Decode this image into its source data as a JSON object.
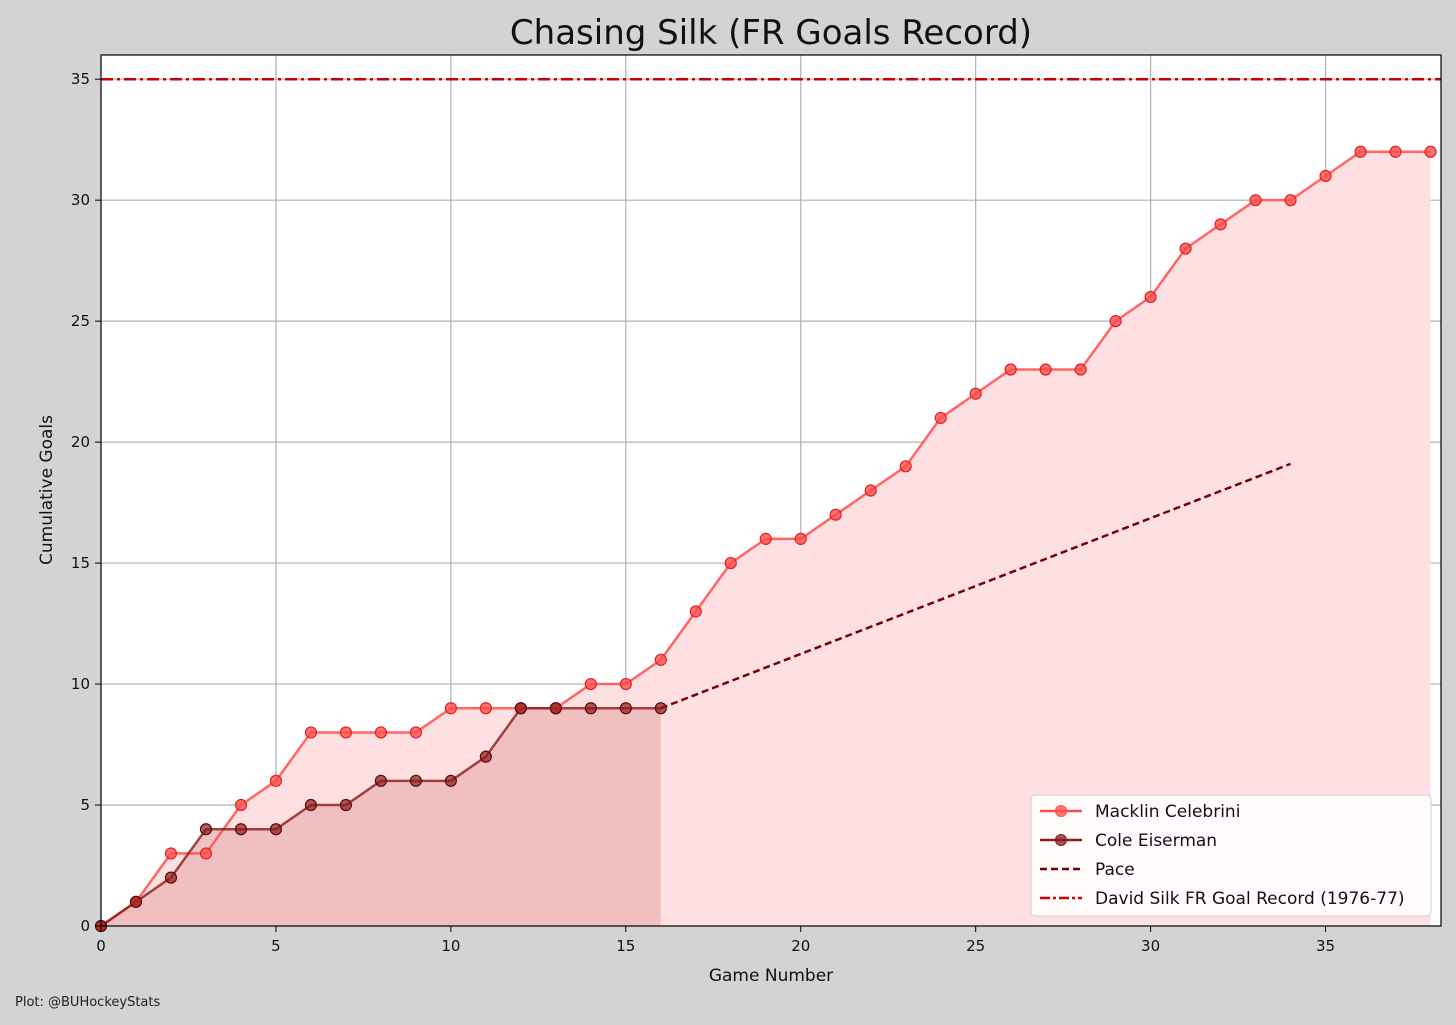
{
  "chart_data": {
    "type": "line",
    "title": "Chasing Silk (FR Goals Record)",
    "xlabel": "Game Number",
    "ylabel": "Cumulative Goals",
    "xlim": [
      0,
      38.3
    ],
    "ylim": [
      0,
      36
    ],
    "xticks": [
      0,
      5,
      10,
      15,
      20,
      25,
      30,
      35
    ],
    "yticks": [
      0,
      5,
      10,
      15,
      20,
      25,
      30,
      35
    ],
    "grid": true,
    "legend_position": "bottom-right",
    "series": [
      {
        "name": "Macklin Celebrini",
        "style": "line-marker",
        "color": "#ff4d4d",
        "fill": "#ffe0e2",
        "x": [
          0,
          1,
          2,
          3,
          4,
          5,
          6,
          7,
          8,
          9,
          10,
          11,
          12,
          13,
          14,
          15,
          16,
          17,
          18,
          19,
          20,
          21,
          22,
          23,
          24,
          25,
          26,
          27,
          28,
          29,
          30,
          31,
          32,
          33,
          34,
          35,
          36,
          37,
          38
        ],
        "y": [
          0,
          1,
          3,
          3,
          5,
          6,
          8,
          8,
          8,
          8,
          9,
          9,
          9,
          9,
          10,
          10,
          11,
          13,
          15,
          16,
          16,
          17,
          18,
          19,
          21,
          22,
          23,
          23,
          23,
          25,
          26,
          28,
          29,
          30,
          30,
          31,
          32,
          32,
          32
        ]
      },
      {
        "name": "Cole Eiserman",
        "style": "line-marker",
        "color": "#8b1a1a",
        "fill": "#eebcbc",
        "x": [
          0,
          1,
          2,
          3,
          4,
          5,
          6,
          7,
          8,
          9,
          10,
          11,
          12,
          13,
          14,
          15,
          16
        ],
        "y": [
          0,
          1,
          2,
          4,
          4,
          4,
          5,
          5,
          6,
          6,
          6,
          7,
          9,
          9,
          9,
          9,
          9
        ]
      },
      {
        "name": "Pace",
        "style": "dashed",
        "color": "#7a0000",
        "x": [
          16,
          34
        ],
        "y": [
          9,
          19.1
        ]
      },
      {
        "name": "David Silk FR Goal Record (1976-77)",
        "style": "dashdot",
        "color": "#cc0000",
        "y_constant": 35
      }
    ]
  },
  "credit": "Plot: @BUHockeyStats"
}
